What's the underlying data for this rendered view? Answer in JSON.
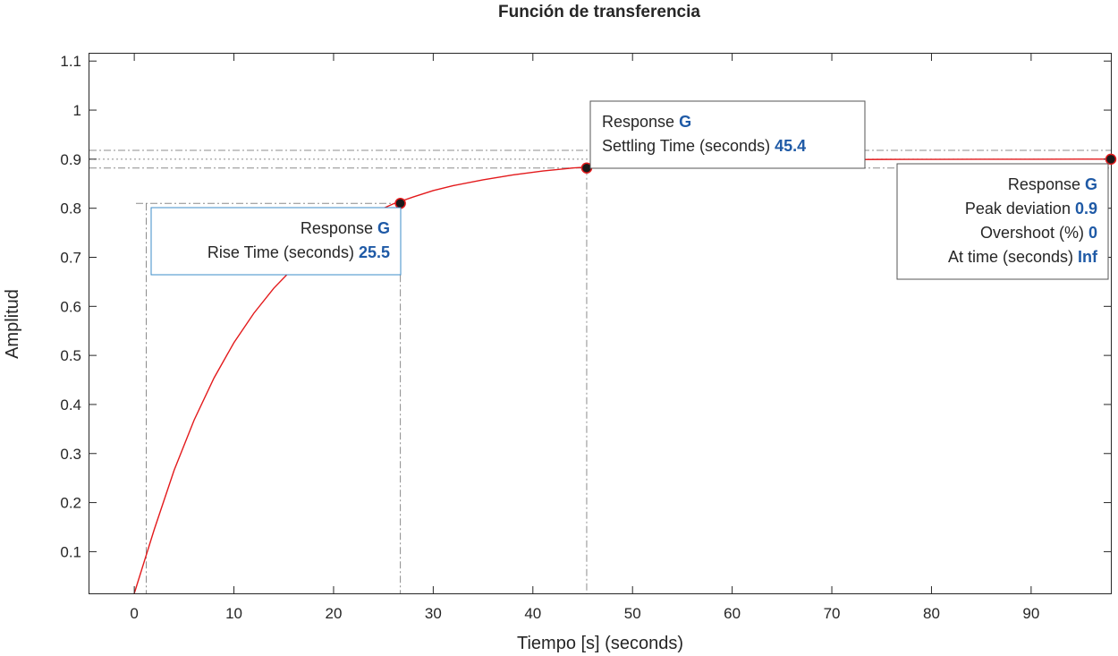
{
  "chart_data": {
    "type": "line",
    "title": "Función de transferencia",
    "xlabel": "Tiempo [s] (seconds)",
    "ylabel": "Amplitud",
    "xlim": [
      -4.5,
      98
    ],
    "ylim": [
      0.015,
      1.115
    ],
    "xticks": [
      0,
      10,
      20,
      30,
      40,
      50,
      60,
      70,
      80,
      90
    ],
    "yticks": [
      0.1,
      0.2,
      0.3,
      0.4,
      0.5,
      0.6,
      0.7,
      0.8,
      0.9,
      1,
      1.1
    ],
    "xtick_labels": [
      "0",
      "10",
      "20",
      "30",
      "40",
      "50",
      "60",
      "70",
      "80",
      "90"
    ],
    "ytick_labels": [
      "0.1",
      "0.2",
      "0.3",
      "0.4",
      "0.5",
      "0.6",
      "0.7",
      "0.8",
      "0.9",
      "1",
      "1.1"
    ],
    "grid": false,
    "series": [
      {
        "name": "G",
        "color": "#e31a1c",
        "x": [
          0,
          2,
          4,
          6,
          8,
          10,
          12,
          14,
          16,
          18,
          20,
          22,
          24,
          26,
          28,
          30,
          32,
          35,
          38,
          41,
          44,
          47,
          50,
          55,
          60,
          65,
          70,
          75,
          80,
          85,
          90,
          95,
          98
        ],
        "y": [
          0,
          0.145,
          0.266,
          0.368,
          0.454,
          0.526,
          0.586,
          0.637,
          0.679,
          0.715,
          0.745,
          0.77,
          0.791,
          0.809,
          0.823,
          0.836,
          0.846,
          0.858,
          0.868,
          0.876,
          0.882,
          0.886,
          0.889,
          0.893,
          0.896,
          0.898,
          0.899,
          0.8995,
          0.8997,
          0.8998,
          0.8999,
          0.9,
          0.9
        ]
      }
    ],
    "steady_state": 0.9,
    "settling_band": [
      0.882,
      0.918
    ],
    "rise_levels": [
      0.09,
      0.81
    ],
    "rise_start_time": 1.2,
    "markers": [
      {
        "id": "rise",
        "x": 26.7,
        "y": 0.81,
        "lines": [
          {
            "label": "Response",
            "value": "G"
          },
          {
            "label": "Rise Time (seconds)",
            "value": "25.5"
          }
        ]
      },
      {
        "id": "settling",
        "x": 45.4,
        "y": 0.882,
        "lines": [
          {
            "label": "Response",
            "value": "G"
          },
          {
            "label": "Settling Time (seconds)",
            "value": "45.4"
          }
        ]
      },
      {
        "id": "peak",
        "x": 98,
        "y": 0.9,
        "lines": [
          {
            "label": "Response",
            "value": "G"
          },
          {
            "label": "Peak deviation",
            "value": "0.9"
          },
          {
            "label": "Overshoot (%)",
            "value": "0"
          },
          {
            "label": "At time (seconds)",
            "value": "Inf"
          }
        ]
      }
    ]
  }
}
